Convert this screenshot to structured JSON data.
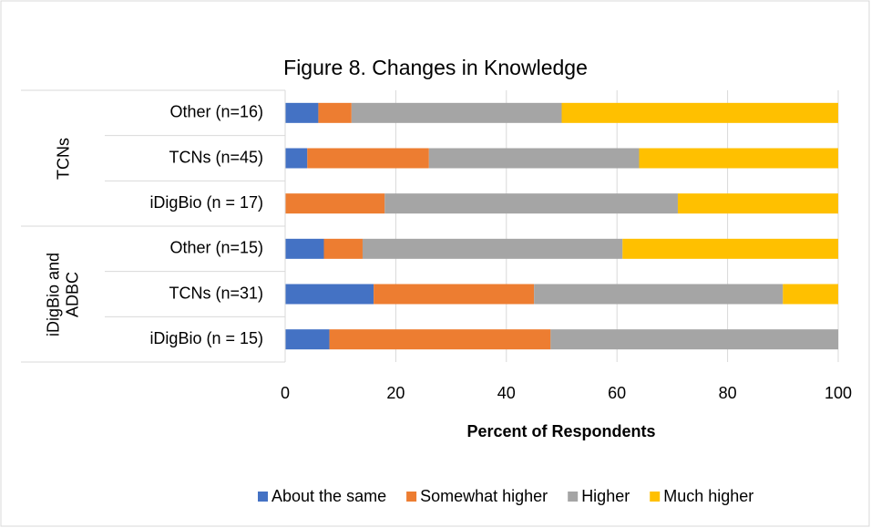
{
  "chart_data": {
    "type": "bar",
    "orientation": "horizontal",
    "stacked": true,
    "title": "Figure 8. Changes in Knowledge",
    "xlabel": "Percent of Respondents",
    "groups": [
      {
        "label": "TCNs",
        "categories": [
          "Other (n=16)",
          "TCNs (n=45)",
          "iDigBio (n = 17)"
        ]
      },
      {
        "label": "iDigBio and ADBC",
        "categories": [
          "Other (n=15)",
          "TCNs (n=31)",
          "iDigBio (n = 15)"
        ]
      }
    ],
    "series": [
      {
        "name": "About the same",
        "color": "#4472c4",
        "values": [
          6,
          4,
          0,
          7,
          16,
          8
        ]
      },
      {
        "name": "Somewhat higher",
        "color": "#ed7d31",
        "values": [
          6,
          22,
          18,
          7,
          29,
          40
        ]
      },
      {
        "name": "Higher",
        "color": "#a5a5a5",
        "values": [
          38,
          38,
          53,
          47,
          45,
          52
        ]
      },
      {
        "name": "Much higher",
        "color": "#ffc000",
        "values": [
          50,
          36,
          29,
          39,
          10,
          0
        ]
      }
    ],
    "xlim": [
      0,
      100
    ],
    "xticks": [
      0,
      20,
      40,
      60,
      80,
      100
    ],
    "grid": true,
    "legend": "bottom"
  }
}
